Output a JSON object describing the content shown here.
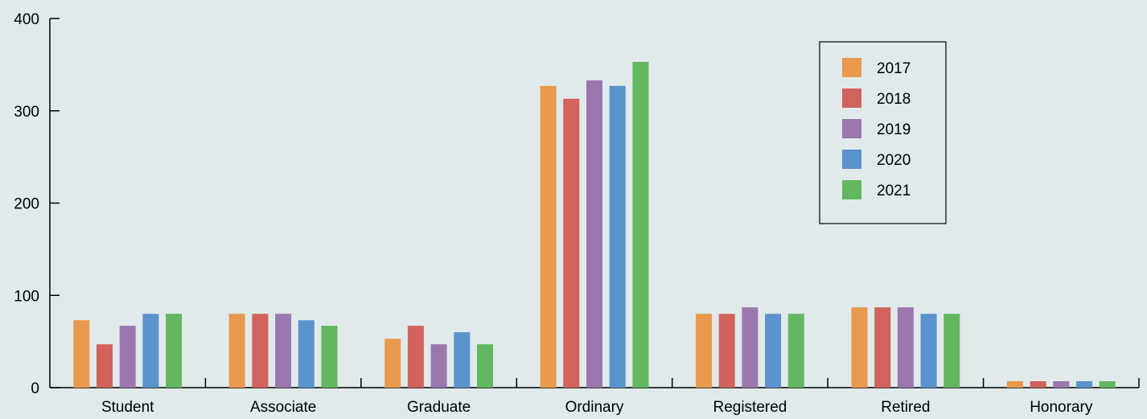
{
  "chart_data": {
    "type": "bar",
    "title": "",
    "xlabel": "",
    "ylabel": "",
    "categories": [
      "Student",
      "Associate",
      "Graduate",
      "Ordinary",
      "Registered",
      "Retired",
      "Honorary"
    ],
    "ylim": [
      0,
      400
    ],
    "yticks": [
      0,
      100,
      200,
      300,
      400
    ],
    "grid": false,
    "legend_position": "top-right",
    "series": [
      {
        "name": "2017",
        "color": "#e8994d",
        "values": [
          73,
          80,
          53,
          327,
          80,
          87,
          7
        ]
      },
      {
        "name": "2018",
        "color": "#d1625c",
        "values": [
          47,
          80,
          67,
          313,
          80,
          87,
          7
        ]
      },
      {
        "name": "2019",
        "color": "#9b77b0",
        "values": [
          67,
          80,
          47,
          333,
          87,
          87,
          7
        ]
      },
      {
        "name": "2020",
        "color": "#5b93cd",
        "values": [
          80,
          73,
          60,
          327,
          80,
          80,
          7
        ]
      },
      {
        "name": "2021",
        "color": "#63b760",
        "values": [
          80,
          67,
          47,
          353,
          80,
          80,
          7
        ]
      }
    ]
  }
}
